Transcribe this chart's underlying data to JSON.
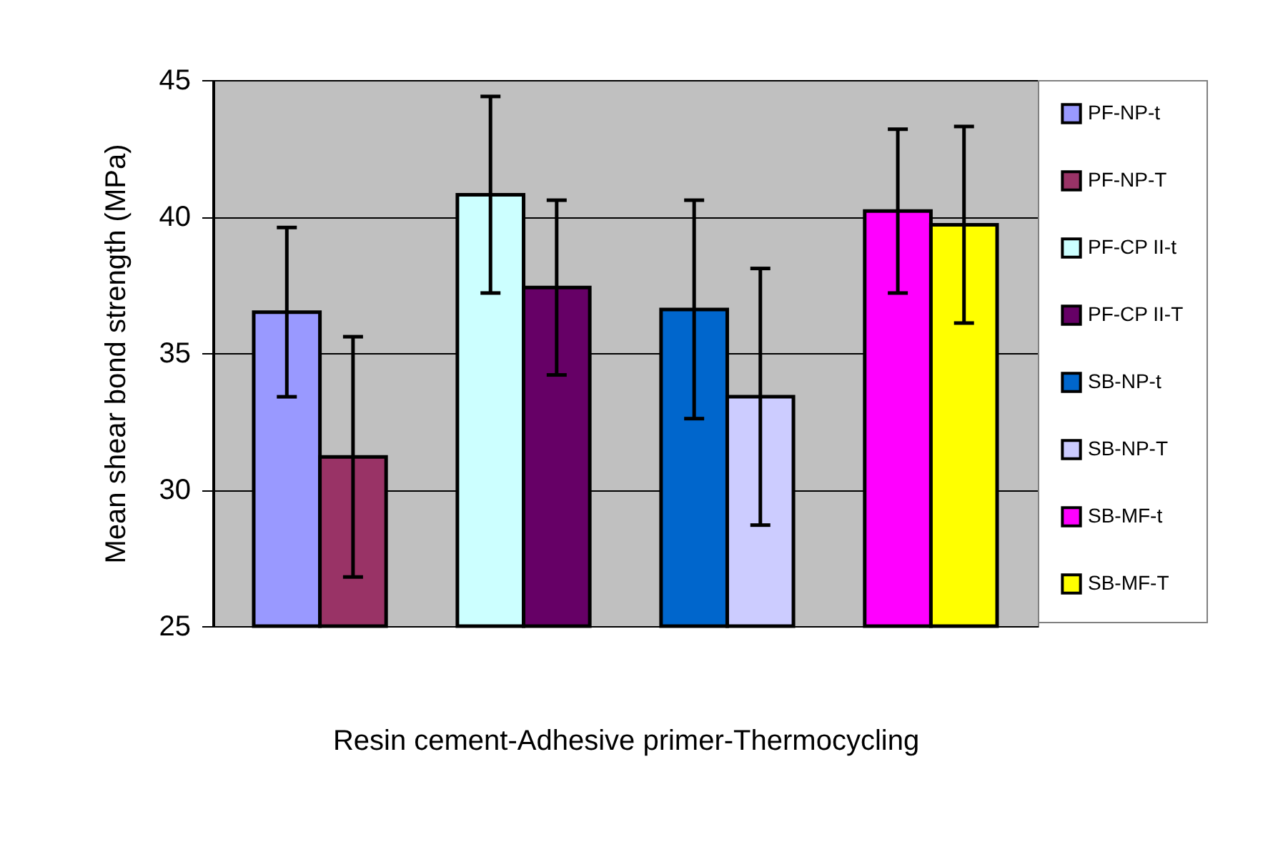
{
  "chart_data": {
    "type": "bar",
    "xlabel": "Resin cement-Adhesive primer-Thermocycling",
    "ylabel": "Mean shear bond strength (MPa)",
    "categories": [
      null,
      null,
      null,
      null
    ],
    "series": [
      {
        "name": "PF-NP-t",
        "color": "#9999ff",
        "values": [
          36.5,
          null,
          null,
          null
        ],
        "errors": [
          3.1,
          null,
          null,
          null
        ]
      },
      {
        "name": "PF-NP-T",
        "color": "#993366",
        "values": [
          31.2,
          null,
          null,
          null
        ],
        "errors": [
          4.4,
          null,
          null,
          null
        ]
      },
      {
        "name": "PF-CP II-t",
        "color": "#ccffff",
        "values": [
          null,
          40.8,
          null,
          null
        ],
        "errors": [
          null,
          3.6,
          null,
          null
        ]
      },
      {
        "name": "PF-CP II-T",
        "color": "#660066",
        "values": [
          null,
          37.4,
          null,
          null
        ],
        "errors": [
          null,
          3.2,
          null,
          null
        ]
      },
      {
        "name": "SB-NP-t",
        "color": "#0066cc",
        "values": [
          null,
          null,
          36.6,
          null
        ],
        "errors": [
          null,
          null,
          4.0,
          null
        ]
      },
      {
        "name": "SB-NP-T",
        "color": "#ccccff",
        "values": [
          null,
          null,
          33.4,
          null
        ],
        "errors": [
          null,
          null,
          4.7,
          null
        ]
      },
      {
        "name": "SB-MF-t",
        "color": "#ff00ff",
        "values": [
          null,
          null,
          null,
          40.2
        ],
        "errors": [
          null,
          null,
          null,
          3.0
        ]
      },
      {
        "name": "SB-MF-T",
        "color": "#ffff00",
        "values": [
          null,
          null,
          null,
          39.7
        ],
        "errors": [
          null,
          null,
          null,
          3.6
        ]
      }
    ],
    "ylim": [
      25,
      45
    ],
    "yticks": [
      25,
      30,
      35,
      40,
      45
    ],
    "grid": "y",
    "legend": "right"
  }
}
